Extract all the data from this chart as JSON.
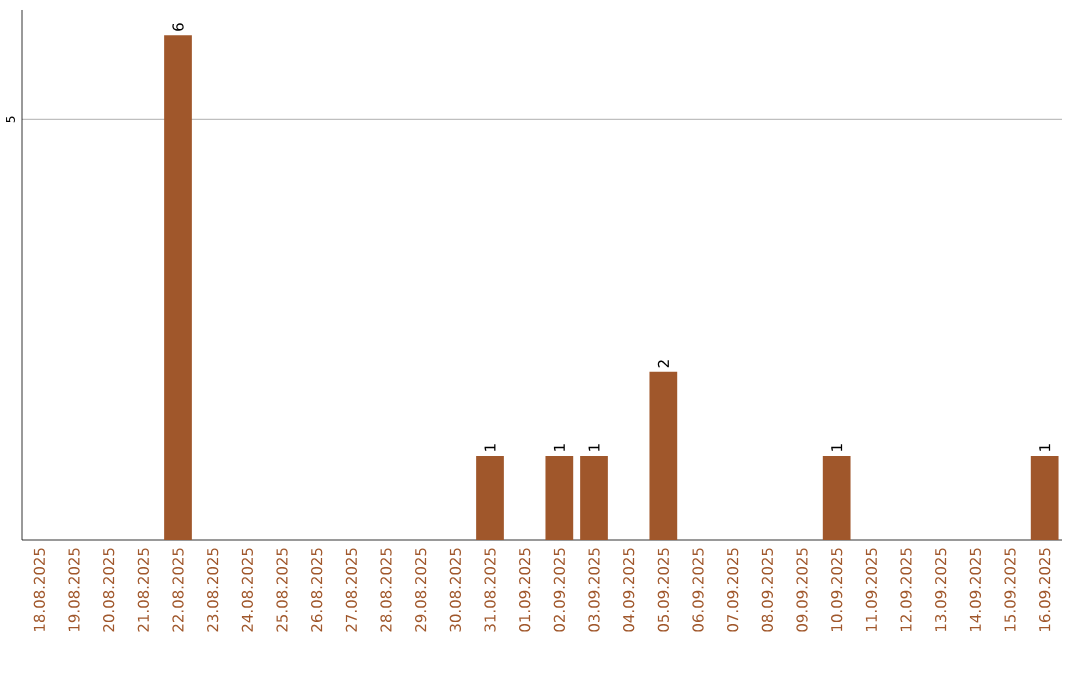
{
  "chart_data": {
    "type": "bar",
    "categories": [
      "18.08.2025",
      "19.08.2025",
      "20.08.2025",
      "21.08.2025",
      "22.08.2025",
      "23.08.2025",
      "24.08.2025",
      "25.08.2025",
      "26.08.2025",
      "27.08.2025",
      "28.08.2025",
      "29.08.2025",
      "30.08.2025",
      "31.08.2025",
      "01.09.2025",
      "02.09.2025",
      "03.09.2025",
      "04.09.2025",
      "05.09.2025",
      "06.09.2025",
      "07.09.2025",
      "08.09.2025",
      "09.09.2025",
      "10.09.2025",
      "11.09.2025",
      "12.09.2025",
      "13.09.2025",
      "14.09.2025",
      "15.09.2025",
      "16.09.2025"
    ],
    "values": [
      0,
      0,
      0,
      0,
      6,
      0,
      0,
      0,
      0,
      0,
      0,
      0,
      0,
      1,
      0,
      1,
      1,
      0,
      2,
      0,
      0,
      0,
      0,
      1,
      0,
      0,
      0,
      0,
      0,
      1
    ],
    "value_labels": [
      null,
      null,
      null,
      null,
      "6",
      null,
      null,
      null,
      null,
      null,
      null,
      null,
      null,
      "1",
      null,
      "1",
      "1",
      null,
      "2",
      null,
      null,
      null,
      null,
      "1",
      null,
      null,
      null,
      null,
      null,
      "1"
    ],
    "color": "#a0572b",
    "ylim": [
      0,
      6.3
    ],
    "yticks": [
      5
    ],
    "grid": "y"
  }
}
